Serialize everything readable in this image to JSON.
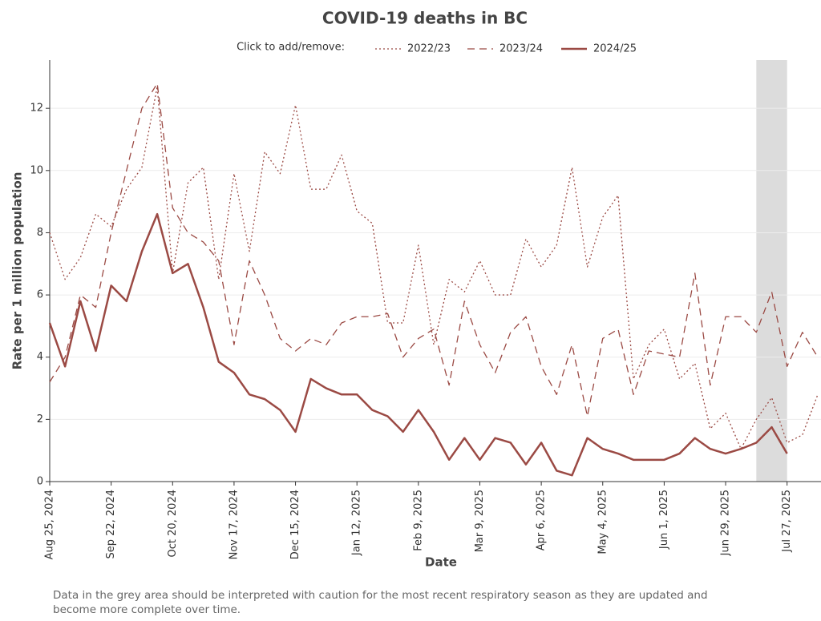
{
  "chart_data": {
    "type": "line",
    "title": "COVID-19 deaths in BC",
    "legend_prompt": "Click to add/remove:",
    "xlabel": "Date",
    "ylabel": "Rate per 1 million population",
    "note": "Data in the grey area should be interpreted with caution for the most recent respiratory season as they are updated and become more complete over time.",
    "x": [
      "2024-08-25",
      "2024-09-01",
      "2024-09-08",
      "2024-09-15",
      "2024-09-22",
      "2024-09-29",
      "2024-10-06",
      "2024-10-13",
      "2024-10-20",
      "2024-10-27",
      "2024-11-03",
      "2024-11-10",
      "2024-11-17",
      "2024-11-24",
      "2024-12-01",
      "2024-12-08",
      "2024-12-15",
      "2024-12-22",
      "2024-12-29",
      "2025-01-05",
      "2025-01-12",
      "2025-01-19",
      "2025-01-26",
      "2025-02-02",
      "2025-02-09",
      "2025-02-16",
      "2025-02-23",
      "2025-03-02",
      "2025-03-09",
      "2025-03-16",
      "2025-03-23",
      "2025-03-30",
      "2025-04-06",
      "2025-04-13",
      "2025-04-20",
      "2025-04-27",
      "2025-05-04",
      "2025-05-11",
      "2025-05-18",
      "2025-05-25",
      "2025-06-01",
      "2025-06-08",
      "2025-06-15",
      "2025-06-22",
      "2025-06-29",
      "2025-07-06",
      "2025-07-13",
      "2025-07-20",
      "2025-07-27",
      "2025-08-03",
      "2025-08-10"
    ],
    "series": [
      {
        "name": "2022/23",
        "color": "#9b4a44",
        "style": "dotted",
        "values": [
          8.0,
          6.5,
          7.2,
          8.6,
          8.2,
          9.4,
          10.1,
          12.7,
          6.7,
          9.6,
          10.1,
          6.5,
          9.9,
          7.4,
          10.6,
          9.9,
          12.1,
          9.4,
          9.4,
          10.5,
          8.7,
          8.3,
          5.1,
          5.1,
          7.6,
          4.4,
          6.5,
          6.1,
          7.1,
          6.0,
          6.0,
          7.8,
          6.9,
          7.6,
          10.1,
          6.9,
          8.5,
          9.2,
          3.3,
          4.4,
          4.9,
          3.3,
          3.8,
          1.7,
          2.2,
          1.05,
          2.0,
          2.7,
          1.25,
          1.5,
          2.8
        ]
      },
      {
        "name": "2023/24",
        "color": "#9b4a44",
        "style": "dashed",
        "values": [
          3.2,
          4.0,
          6.0,
          5.6,
          8.0,
          10.0,
          12.0,
          12.8,
          8.8,
          8.0,
          7.7,
          7.1,
          4.4,
          7.1,
          6.0,
          4.6,
          4.2,
          4.6,
          4.4,
          5.1,
          5.3,
          5.3,
          5.4,
          4.0,
          4.6,
          4.9,
          3.1,
          5.8,
          4.4,
          3.5,
          4.8,
          5.3,
          3.7,
          2.8,
          4.4,
          2.1,
          4.6,
          4.9,
          2.8,
          4.2,
          4.1,
          4.0,
          6.7,
          3.1,
          5.3,
          5.3,
          4.8,
          6.1,
          3.7,
          4.8,
          4.0
        ]
      },
      {
        "name": "2024/25",
        "color": "#9b4a44",
        "style": "solid",
        "values": [
          5.1,
          3.7,
          5.8,
          4.2,
          6.3,
          5.8,
          7.4,
          8.6,
          6.7,
          7.0,
          5.6,
          3.85,
          3.5,
          2.8,
          2.65,
          2.3,
          1.6,
          3.3,
          3.0,
          2.8,
          2.8,
          2.3,
          2.1,
          1.6,
          2.3,
          1.6,
          0.7,
          1.4,
          0.7,
          1.4,
          1.25,
          0.55,
          1.25,
          0.35,
          0.2,
          1.4,
          1.05,
          0.9,
          0.7,
          0.7,
          0.7,
          0.9,
          1.4,
          1.05,
          0.9,
          1.05,
          1.25,
          1.75,
          0.9,
          null,
          null
        ]
      }
    ],
    "shaded_region": [
      "2025-07-13",
      "2025-07-27"
    ],
    "xlim": [
      "2024-08-25",
      "2025-08-10"
    ],
    "xticks": [
      {
        "value": "2024-08-25",
        "label": "Aug 25, 2024"
      },
      {
        "value": "2024-09-22",
        "label": "Sep 22, 2024"
      },
      {
        "value": "2024-10-20",
        "label": "Oct 20, 2024"
      },
      {
        "value": "2024-11-17",
        "label": "Nov 17, 2024"
      },
      {
        "value": "2024-12-15",
        "label": "Dec 15, 2024"
      },
      {
        "value": "2025-01-12",
        "label": "Jan 12, 2025"
      },
      {
        "value": "2025-02-09",
        "label": "Feb 9, 2025"
      },
      {
        "value": "2025-03-09",
        "label": "Mar 9, 2025"
      },
      {
        "value": "2025-04-06",
        "label": "Apr 6, 2025"
      },
      {
        "value": "2025-05-04",
        "label": "May 4, 2025"
      },
      {
        "value": "2025-06-01",
        "label": "Jun 1, 2025"
      },
      {
        "value": "2025-06-29",
        "label": "Jun 29, 2025"
      },
      {
        "value": "2025-07-27",
        "label": "Jul 27, 2025"
      }
    ],
    "ylim": [
      0,
      13.55
    ],
    "yticks": [
      0,
      2,
      4,
      6,
      8,
      10,
      12
    ],
    "grid": true
  }
}
